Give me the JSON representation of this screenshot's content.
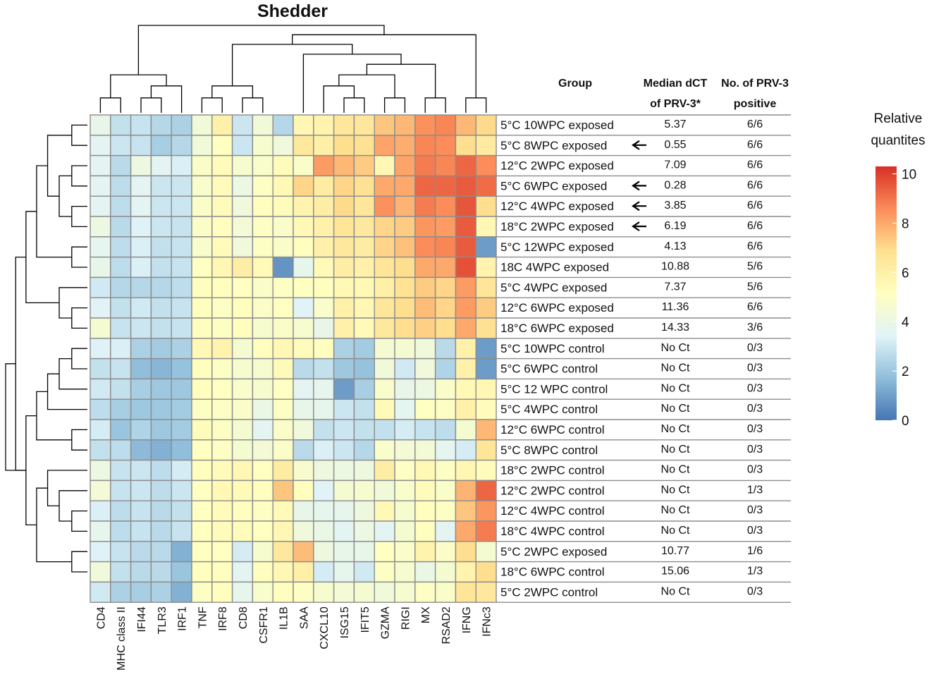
{
  "chart_data": {
    "type": "heatmap",
    "title": "Shedder",
    "columns": [
      "CD4",
      "MHC class II",
      "IFI44",
      "TLR3",
      "IRF1",
      "TNF",
      "IRF8",
      "CD8",
      "CSFR1",
      "IL1B",
      "SAA",
      "CXCL10",
      "ISG15",
      "IFIT5",
      "GZMA",
      "RIGI",
      "MX",
      "RSAD2",
      "IFNG",
      "IFNc3"
    ],
    "table_headers": {
      "group": "Group",
      "median_line1": "Median dCT",
      "median_line2": "of PRV-3*",
      "positive_line1": "No. of PRV-3",
      "positive_line2": "positive"
    },
    "rows": [
      {
        "group": "5°C 10WPC exposed",
        "median_dct": "5.37",
        "positive": "6/6",
        "arrow": false,
        "values": [
          3.9,
          2.8,
          2.9,
          2.5,
          2.3,
          4.4,
          5.9,
          3.0,
          4.4,
          2.5,
          5.6,
          5.8,
          6.5,
          6.5,
          7.4,
          7.7,
          8.5,
          8.7,
          7.7,
          7.0
        ]
      },
      {
        "group": "5°C 8WPC exposed",
        "median_dct": "0.55",
        "positive": "6/6",
        "arrow": true,
        "values": [
          3.6,
          3.0,
          2.9,
          2.2,
          2.5,
          4.4,
          5.1,
          3.0,
          4.7,
          4.3,
          6.4,
          6.0,
          6.9,
          6.8,
          8.1,
          7.9,
          8.7,
          8.6,
          6.9,
          6.3
        ]
      },
      {
        "group": "12°C 2WPC exposed",
        "median_dct": "7.09",
        "positive": "6/6",
        "arrow": false,
        "values": [
          3.6,
          2.6,
          4.1,
          3.6,
          3.3,
          4.9,
          5.3,
          4.7,
          4.8,
          5.3,
          4.9,
          8.3,
          7.7,
          7.3,
          5.6,
          8.1,
          8.9,
          8.7,
          9.3,
          8.6
        ]
      },
      {
        "group": "5°C 6WPC exposed",
        "median_dct": "0.28",
        "positive": "6/6",
        "arrow": true,
        "values": [
          3.6,
          2.7,
          3.6,
          3.0,
          3.0,
          4.8,
          5.3,
          4.1,
          5.0,
          5.5,
          7.1,
          6.2,
          7.1,
          6.8,
          8.0,
          8.0,
          9.3,
          9.3,
          9.5,
          9.2
        ]
      },
      {
        "group": "12°C 4WPC exposed",
        "median_dct": "3.85",
        "positive": "6/6",
        "arrow": true,
        "values": [
          3.6,
          2.7,
          3.6,
          3.0,
          3.0,
          4.9,
          5.3,
          4.3,
          5.2,
          5.3,
          5.8,
          6.1,
          7.0,
          6.5,
          8.5,
          7.8,
          8.9,
          8.6,
          9.6,
          6.9
        ]
      },
      {
        "group": "18°C 2WPC exposed",
        "median_dct": "6.19",
        "positive": "6/6",
        "arrow": true,
        "values": [
          4.1,
          2.6,
          3.4,
          3.0,
          2.9,
          4.9,
          5.2,
          4.5,
          5.0,
          4.9,
          5.5,
          5.9,
          6.6,
          6.4,
          7.1,
          7.3,
          8.4,
          8.3,
          9.5,
          5.6
        ]
      },
      {
        "group": "5°C 12WPC exposed",
        "median_dct": "4.13",
        "positive": "6/6",
        "arrow": false,
        "values": [
          3.7,
          2.7,
          3.3,
          2.8,
          2.9,
          4.8,
          5.3,
          4.3,
          5.0,
          4.9,
          5.2,
          5.9,
          6.4,
          6.2,
          7.1,
          7.5,
          8.6,
          8.7,
          9.5,
          0.9
        ]
      },
      {
        "group": "18C 4WPC exposed",
        "median_dct": "10.88",
        "positive": "5/6",
        "arrow": false,
        "values": [
          3.9,
          2.7,
          3.3,
          2.8,
          2.9,
          5.1,
          5.6,
          6.1,
          5.4,
          0.7,
          3.8,
          5.4,
          6.1,
          5.9,
          6.6,
          6.9,
          8.0,
          8.0,
          9.7,
          5.8
        ]
      },
      {
        "group": "5°C 4WPC exposed",
        "median_dct": "7.37",
        "positive": "5/6",
        "arrow": false,
        "values": [
          3.1,
          2.5,
          2.5,
          2.5,
          2.7,
          5.2,
          5.2,
          5.1,
          4.9,
          5.0,
          5.1,
          5.2,
          5.5,
          5.5,
          6.0,
          6.7,
          7.3,
          7.1,
          8.3,
          6.6
        ]
      },
      {
        "group": "12°C 6WPC exposed",
        "median_dct": "11.36",
        "positive": "6/6",
        "arrow": false,
        "values": [
          3.5,
          2.8,
          3.1,
          2.8,
          2.9,
          5.2,
          5.0,
          5.2,
          4.9,
          5.1,
          3.5,
          4.8,
          5.9,
          5.6,
          6.5,
          6.9,
          7.6,
          7.1,
          8.3,
          7.3
        ]
      },
      {
        "group": "18°C 6WPC exposed",
        "median_dct": "14.33",
        "positive": "3/6",
        "arrow": false,
        "values": [
          4.6,
          2.9,
          3.0,
          2.8,
          2.9,
          5.2,
          5.0,
          5.2,
          4.7,
          4.9,
          4.7,
          3.9,
          5.9,
          5.4,
          6.4,
          6.9,
          7.2,
          6.9,
          8.0,
          6.8
        ]
      },
      {
        "group": "5°C 10WPC control",
        "median_dct": "No Ct",
        "positive": "0/3",
        "arrow": false,
        "values": [
          3.4,
          3.3,
          2.3,
          2.1,
          2.3,
          5.5,
          5.8,
          4.6,
          5.2,
          5.6,
          5.3,
          5.2,
          2.3,
          2.1,
          4.6,
          4.6,
          4.3,
          2.6,
          5.9,
          0.9
        ]
      },
      {
        "group": "5°C 6WPC control",
        "median_dct": "No Ct",
        "positive": "0/3",
        "arrow": false,
        "values": [
          2.8,
          2.9,
          1.7,
          1.5,
          1.8,
          5.2,
          5.0,
          4.7,
          4.7,
          5.4,
          2.6,
          2.8,
          2.0,
          1.8,
          4.4,
          3.1,
          4.3,
          2.4,
          5.9,
          0.9
        ]
      },
      {
        "group": "5°C 12 WPC control",
        "median_dct": "No Ct",
        "positive": "0/3",
        "arrow": false,
        "values": [
          3.1,
          2.8,
          2.2,
          2.0,
          2.0,
          5.2,
          5.1,
          4.8,
          4.7,
          5.1,
          3.6,
          3.8,
          0.9,
          2.2,
          4.8,
          3.9,
          4.1,
          4.9,
          5.5,
          5.6
        ]
      },
      {
        "group": "5°C 4WPC control",
        "median_dct": "No Ct",
        "positive": "0/3",
        "arrow": false,
        "values": [
          2.7,
          2.2,
          2.0,
          2.0,
          2.1,
          5.0,
          5.0,
          4.9,
          4.0,
          5.0,
          3.9,
          3.8,
          3.0,
          2.8,
          5.4,
          3.7,
          5.1,
          5.0,
          5.9,
          5.3
        ]
      },
      {
        "group": "12°C 6WPC control",
        "median_dct": "No Ct",
        "positive": "0/3",
        "arrow": false,
        "values": [
          3.2,
          1.9,
          2.4,
          2.0,
          2.1,
          5.3,
          5.0,
          4.6,
          3.6,
          4.9,
          4.3,
          2.8,
          3.0,
          2.8,
          2.8,
          3.2,
          2.9,
          2.7,
          4.6,
          7.7
        ]
      },
      {
        "group": "5°C 8WPC control",
        "median_dct": "No Ct",
        "positive": "0/3",
        "arrow": false,
        "values": [
          2.8,
          2.7,
          1.6,
          1.4,
          1.7,
          5.1,
          5.0,
          4.6,
          4.5,
          4.9,
          2.6,
          3.3,
          3.0,
          2.5,
          4.8,
          4.5,
          4.5,
          3.7,
          3.2,
          6.6
        ]
      },
      {
        "group": "18°C 2WPC control",
        "median_dct": "No Ct",
        "positive": "0/3",
        "arrow": false,
        "values": [
          4.1,
          2.9,
          3.0,
          2.7,
          3.2,
          5.2,
          5.3,
          5.6,
          5.1,
          6.2,
          4.7,
          4.2,
          4.1,
          4.2,
          6.1,
          5.0,
          5.5,
          5.0,
          5.6,
          5.3
        ]
      },
      {
        "group": "12°C 2WPC control",
        "median_dct": "No Ct",
        "positive": "1/3",
        "arrow": false,
        "values": [
          4.5,
          2.9,
          3.0,
          2.7,
          3.0,
          5.1,
          5.5,
          5.4,
          5.2,
          7.4,
          5.2,
          3.5,
          4.6,
          4.7,
          4.4,
          4.8,
          5.3,
          4.9,
          7.8,
          9.3
        ]
      },
      {
        "group": "12°C 4WPC control",
        "median_dct": "No Ct",
        "positive": "0/3",
        "arrow": false,
        "values": [
          3.3,
          2.7,
          2.9,
          2.6,
          2.8,
          5.1,
          5.3,
          5.2,
          5.0,
          5.4,
          3.9,
          3.8,
          3.8,
          4.2,
          5.5,
          4.7,
          5.2,
          5.0,
          7.4,
          8.4
        ]
      },
      {
        "group": "18°C 4WPC control",
        "median_dct": "No Ct",
        "positive": "0/3",
        "arrow": false,
        "values": [
          3.8,
          2.7,
          2.9,
          2.6,
          2.9,
          5.1,
          5.3,
          5.3,
          5.1,
          5.6,
          4.3,
          4.0,
          3.6,
          4.1,
          3.6,
          4.6,
          5.2,
          3.6,
          8.0,
          8.9
        ]
      },
      {
        "group": "5°C 2WPC exposed",
        "median_dct": "10.77",
        "positive": "1/6",
        "arrow": false,
        "values": [
          3.4,
          2.9,
          2.6,
          2.6,
          1.4,
          5.1,
          5.1,
          3.2,
          4.7,
          6.4,
          7.6,
          4.2,
          3.9,
          3.9,
          5.1,
          4.9,
          5.8,
          4.9,
          6.9,
          4.6
        ]
      },
      {
        "group": "18°C 6WPC control",
        "median_dct": "15.06",
        "positive": "1/3",
        "arrow": false,
        "values": [
          4.3,
          2.8,
          2.6,
          2.6,
          1.9,
          5.2,
          5.2,
          3.6,
          5.2,
          5.6,
          6.0,
          3.2,
          3.8,
          3.1,
          5.0,
          4.7,
          4.0,
          4.6,
          5.8,
          6.9
        ]
      },
      {
        "group": "5°C 2WPC control",
        "median_dct": "No Ct",
        "positive": "0/3",
        "arrow": false,
        "values": [
          3.1,
          2.3,
          2.2,
          2.3,
          1.4,
          5.0,
          5.2,
          3.8,
          4.8,
          5.2,
          5.0,
          4.7,
          4.5,
          4.6,
          4.4,
          4.7,
          5.0,
          4.9,
          6.6,
          6.4
        ]
      }
    ],
    "legend": {
      "title_line1": "Relative",
      "title_line2": "quantites",
      "min": 0,
      "max": 10.3,
      "ticks": [
        0,
        2,
        4,
        6,
        8,
        10
      ]
    },
    "color_scale": [
      "#4575b4",
      "#91bfdb",
      "#e0f3f8",
      "#ffffbf",
      "#fee090",
      "#fc8d59",
      "#d73027"
    ],
    "cell_border_color": "#8c8c8c",
    "row_dendrogram_merges": [
      [
        0,
        1
      ],
      [
        2,
        3
      ],
      [
        4,
        5
      ],
      [
        -2,
        -3
      ],
      [
        -1,
        -4
      ],
      [
        6,
        7
      ],
      [
        -5,
        -6
      ],
      [
        9,
        10
      ],
      [
        8,
        -8
      ],
      [
        -7,
        -9
      ],
      [
        11,
        12
      ],
      [
        -11,
        13
      ],
      [
        -12,
        14
      ],
      [
        15,
        16
      ],
      [
        -13,
        -14
      ],
      [
        19,
        20
      ],
      [
        18,
        -16
      ],
      [
        17,
        -17
      ],
      [
        21,
        22
      ],
      [
        -18,
        -19
      ],
      [
        -15,
        -20
      ],
      [
        -10,
        -21
      ],
      [
        -21,
        -22
      ]
    ],
    "column_dendrogram_merges": [
      [
        2,
        3
      ],
      [
        -1,
        4
      ],
      [
        0,
        1
      ],
      [
        5,
        6
      ],
      [
        7,
        8
      ],
      [
        -4,
        -5
      ],
      [
        12,
        13
      ],
      [
        11,
        -7
      ],
      [
        14,
        15
      ],
      [
        -8,
        -9
      ],
      [
        16,
        17
      ],
      [
        -10,
        -11
      ],
      [
        10,
        -12
      ],
      [
        -6,
        -13
      ],
      [
        18,
        19
      ],
      [
        -14,
        -15
      ],
      [
        -3,
        -2
      ],
      [
        -17,
        -16
      ]
    ]
  }
}
